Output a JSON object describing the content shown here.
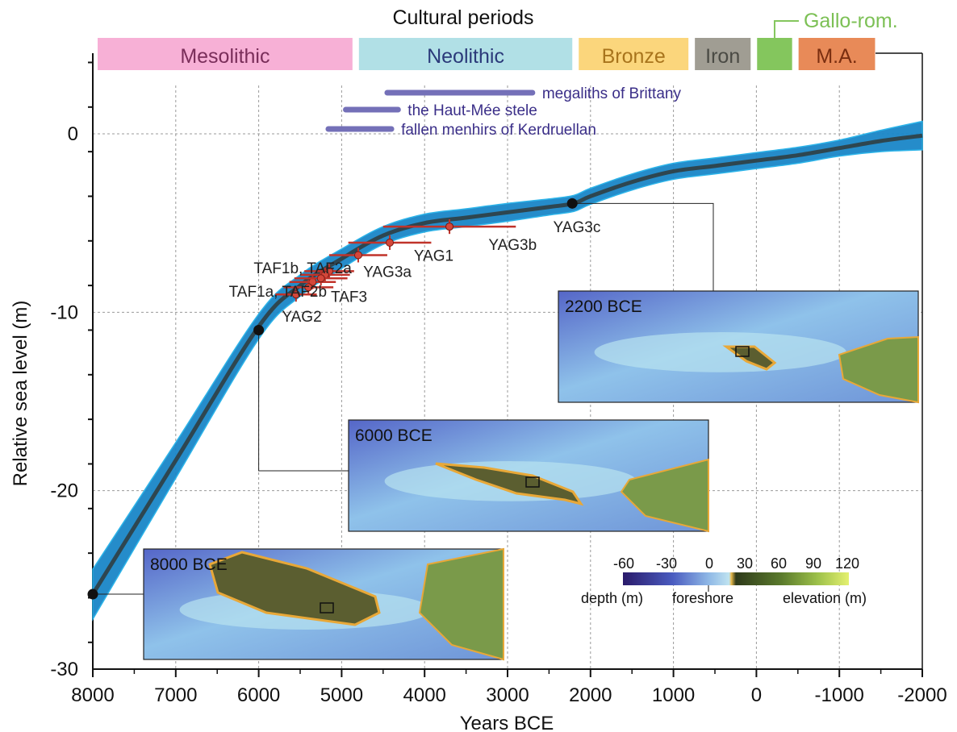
{
  "chart_data": {
    "type": "line",
    "title": "Cultural periods",
    "xlabel": "Years BCE",
    "ylabel": "Relative sea level (m)",
    "xlim": [
      8000,
      -2000
    ],
    "ylim": [
      -30,
      4
    ],
    "x_ticks": [
      8000,
      7000,
      6000,
      5000,
      4000,
      3000,
      2000,
      1000,
      0,
      -1000,
      -2000
    ],
    "y_ticks": [
      0,
      -10,
      -20,
      -30
    ],
    "grid": true,
    "periods": [
      {
        "name": "Mesolithic",
        "start": 8000,
        "end": 4850,
        "color": "#f7b0d6",
        "text_color": "#7a2e5a"
      },
      {
        "name": "Neolithic",
        "start": 4850,
        "end": 2200,
        "color": "#b1e0e6",
        "text_color": "#2b3a7a"
      },
      {
        "name": "Bronze",
        "start": 2200,
        "end": 800,
        "color": "#fbd67c",
        "text_color": "#a8741c"
      },
      {
        "name": "Iron",
        "start": 800,
        "end": 50,
        "color": "#a09d93",
        "text_color": "#4a4a44"
      },
      {
        "name": "Gallo-rom.",
        "start": 50,
        "end": -450,
        "color": "#84c65d",
        "text_color": "#7cc055"
      },
      {
        "name": "M.A.",
        "start": -450,
        "end": -1450,
        "color": "#e88a58",
        "text_color": "#7a2e10"
      }
    ],
    "monuments": [
      {
        "label": "megaliths of Brittany",
        "start": 4450,
        "end": 2700
      },
      {
        "label": "the Haut-Mée stele",
        "start": 4950,
        "end": 4320
      },
      {
        "label": "fallen menhirs of Kerdruellan",
        "start": 5160,
        "end": 4400
      }
    ],
    "curve": {
      "x": [
        8000,
        7000,
        6000,
        5500,
        5000,
        4500,
        4000,
        3500,
        3000,
        2500,
        2200,
        2000,
        1500,
        1000,
        500,
        0,
        -500,
        -1000,
        -1500,
        -2000
      ],
      "y": [
        -25.8,
        -18.3,
        -10.8,
        -8.5,
        -7.0,
        -5.7,
        -5.0,
        -4.7,
        -4.4,
        -4.1,
        -3.9,
        -3.5,
        -2.7,
        -2.1,
        -1.8,
        -1.5,
        -1.2,
        -0.8,
        -0.4,
        -0.1
      ],
      "band_halfwidth": [
        1.4,
        1.0,
        0.7,
        0.6,
        0.55,
        0.5,
        0.5,
        0.5,
        0.5,
        0.45,
        0.45,
        0.45,
        0.45,
        0.45,
        0.45,
        0.45,
        0.45,
        0.45,
        0.6,
        0.8
      ],
      "color": "#1a86c8",
      "line_color": "#2e4650"
    },
    "samples": [
      {
        "name": "YAG3c",
        "x": 3700,
        "y": -5.2,
        "xerr": 800
      },
      {
        "name": "YAG3b",
        "x": 3700,
        "y": -5.2,
        "xerr": 0
      },
      {
        "name": "YAG1",
        "x": 4420,
        "y": -6.1,
        "xerr": 500
      },
      {
        "name": "YAG3a",
        "x": 4800,
        "y": -6.8,
        "xerr": 350
      },
      {
        "name": "TAF1b",
        "x": 5150,
        "y": -7.7,
        "xerr": 300
      },
      {
        "name": "TAF2a",
        "x": 5200,
        "y": -7.9,
        "xerr": 300
      },
      {
        "name": "TAF1a",
        "x": 5350,
        "y": -8.3,
        "xerr": 280
      },
      {
        "name": "TAF2b",
        "x": 5400,
        "y": -8.6,
        "xerr": 300
      },
      {
        "name": "TAF3",
        "x": 5250,
        "y": -8.1,
        "xerr": 320
      },
      {
        "name": "YAG2",
        "x": 5550,
        "y": -9.0,
        "xerr": 250
      }
    ],
    "sample_labels": [
      {
        "text": "YAG3c",
        "x": 2450,
        "y": -5.2
      },
      {
        "text": "YAG3b",
        "x": 3230,
        "y": -6.2
      },
      {
        "text": "YAG1",
        "x": 4130,
        "y": -6.8
      },
      {
        "text": "YAG3a",
        "x": 4740,
        "y": -7.7
      },
      {
        "text": "TAF1b, TAF2a",
        "x": 6060,
        "y": -7.5
      },
      {
        "text": "TAF1a, TAF2b",
        "x": 6360,
        "y": -8.8
      },
      {
        "text": "TAF3",
        "x": 5130,
        "y": -9.1
      },
      {
        "text": "YAG2",
        "x": 5720,
        "y": -10.2
      }
    ],
    "snapshots": [
      {
        "label": "8000 BCE",
        "x": 8000,
        "y": -25.8
      },
      {
        "label": "6000 BCE",
        "x": 6000,
        "y": -11.0
      },
      {
        "label": "2200 BCE",
        "x": 2220,
        "y": -3.9
      }
    ],
    "colorbar": {
      "ticks": [
        "-60",
        "-30",
        "0",
        "30",
        "60",
        "90",
        "120"
      ],
      "depth_label": "depth (m)",
      "foreshore_label": "foreshore",
      "elevation_label": "elevation (m)"
    }
  }
}
